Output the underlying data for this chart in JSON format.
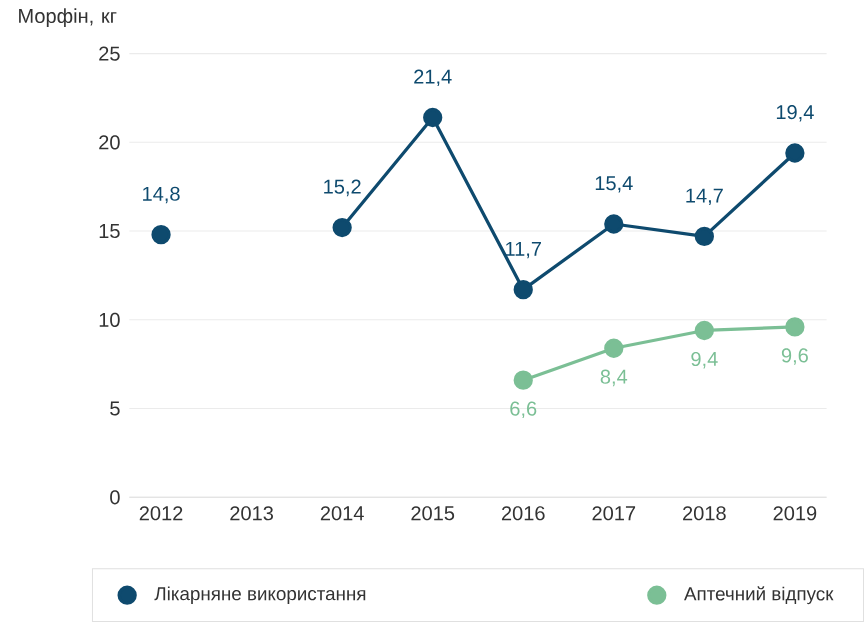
{
  "chart_data": {
    "type": "line",
    "ylabel": "Морфін, кг",
    "categories": [
      "2012",
      "2013",
      "2014",
      "2015",
      "2016",
      "2017",
      "2018",
      "2019"
    ],
    "series": [
      {
        "name": "Лікарняне використання",
        "color": "#0e4a6e",
        "values": [
          14.8,
          null,
          15.2,
          21.4,
          11.7,
          15.4,
          14.7,
          19.4
        ],
        "value_labels": [
          "14,8",
          null,
          "15,2",
          "21,4",
          "11,7",
          "15,4",
          "14,7",
          "19,4"
        ]
      },
      {
        "name": "Аптечний відпуск",
        "color": "#7bbf95",
        "values": [
          null,
          null,
          null,
          null,
          6.6,
          8.4,
          9.4,
          9.6
        ],
        "value_labels": [
          null,
          null,
          null,
          null,
          "6,6",
          "8,4",
          "9,4",
          "9,6"
        ]
      }
    ],
    "ylim": [
      0,
      25
    ],
    "yticks": [
      0,
      5,
      10,
      15,
      20,
      25
    ],
    "grid": "y",
    "legend": "bottom",
    "marker": "circle",
    "line_style": "solid"
  }
}
